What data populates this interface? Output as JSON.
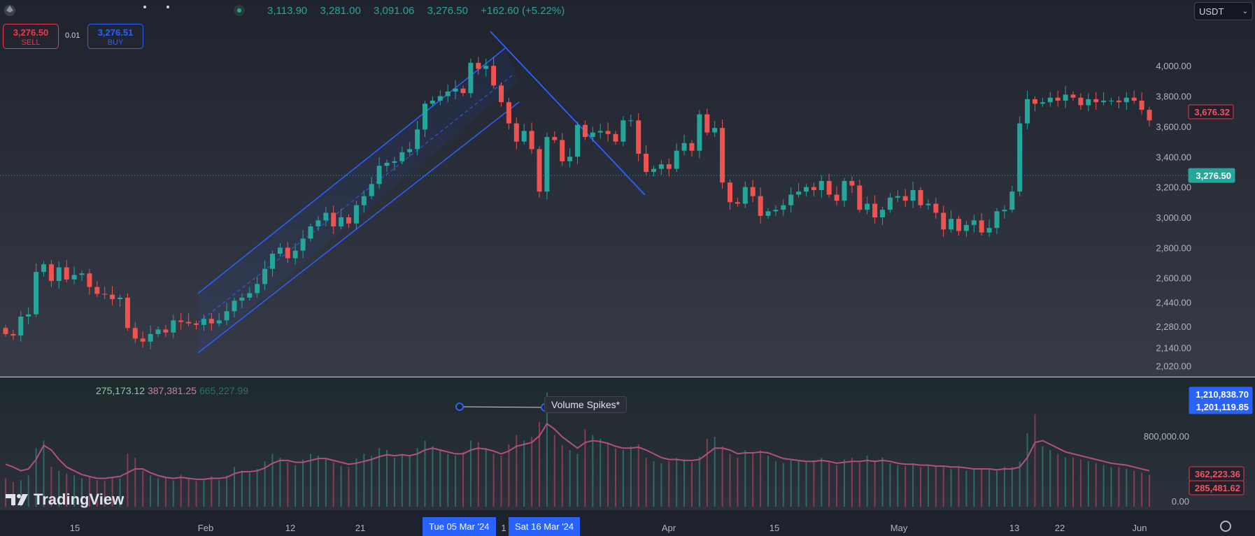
{
  "header": {
    "ohlc": [
      "3,113.90",
      "3,281.00",
      "3,091.06",
      "3,276.50",
      "+162.60 (+5.22%)"
    ],
    "sell_price": "3,276.50",
    "sell_label": "SELL",
    "buy_price": "3,276.51",
    "buy_label": "BUY",
    "spread": "0.01",
    "currency": "USDT",
    "chevron": "⌄"
  },
  "volume_pane": {
    "values": [
      "275,173.12",
      "387,381.25",
      "665,227.99"
    ],
    "annotation": "Volume Spikes*",
    "axis_ticks": [
      "800,000.00",
      "0.00"
    ],
    "labels": [
      "1,210,838.70",
      "1,201,119.85",
      "362,223.36",
      "285,481.62"
    ]
  },
  "price_labels": {
    "last": "3,676.32",
    "current": "3,276.50"
  },
  "time_axis": {
    "ticks": [
      "15",
      "Feb",
      "12",
      "21",
      "Apr",
      "15",
      "May",
      "13",
      "22",
      "Jun"
    ],
    "cursor_dates": [
      "Tue 05 Mar '24",
      "Sat 16 Mar '24"
    ],
    "partial": "1"
  },
  "watermark": "TradingView",
  "colors": {
    "up": "#26a69a",
    "down": "#ef5350",
    "accent": "#2962ff",
    "ma": "#b24f7f",
    "background": "#1e222d"
  },
  "chart_data": {
    "type": "candlestick",
    "y_ticks": [
      2020,
      2140,
      2280,
      2440,
      2600,
      2800,
      3000,
      3200,
      3400,
      3600,
      3800,
      4000
    ],
    "ylim": [
      1990,
      4250
    ],
    "opens": [
      2270,
      2230,
      2220,
      2345,
      2360,
      2640,
      2690,
      2580,
      2670,
      2590,
      2620,
      2630,
      2540,
      2495,
      2490,
      2460,
      2470,
      2270,
      2200,
      2180,
      2230,
      2260,
      2240,
      2320,
      2310,
      2300,
      2290,
      2330,
      2300,
      2320,
      2380,
      2450,
      2470,
      2500,
      2560,
      2660,
      2760,
      2800,
      2730,
      2780,
      2860,
      2940,
      2980,
      3030,
      2940,
      3000,
      2960,
      3080,
      3140,
      3220,
      3340,
      3360,
      3370,
      3430,
      3450,
      3580,
      3750,
      3770,
      3800,
      3830,
      3850,
      3820,
      4020,
      3980,
      4000,
      3870,
      3760,
      3620,
      3500,
      3570,
      3450,
      3170,
      3530,
      3510,
      3370,
      3400,
      3610,
      3530,
      3560,
      3570,
      3550,
      3500,
      3640,
      3640,
      3420,
      3300,
      3320,
      3350,
      3320,
      3440,
      3490,
      3440,
      3680,
      3560,
      3590,
      3230,
      3100,
      3090,
      3200,
      3140,
      3010,
      3040,
      3050,
      3080,
      3150,
      3170,
      3200,
      3180,
      3240,
      3150,
      3110,
      3240,
      3210,
      3050,
      3090,
      3000,
      3050,
      3130,
      3140,
      3110,
      3180,
      3080,
      3090,
      3030,
      2920,
      2990,
      2910,
      2950,
      2980,
      2900,
      2930,
      3040,
      3050,
      3170,
      3620,
      3780,
      3750,
      3760,
      3790,
      3770,
      3810,
      3790,
      3740,
      3780,
      3760,
      3770,
      3770,
      3760,
      3790,
      3770,
      3710
    ],
    "closes": [
      2230,
      2220,
      2345,
      2360,
      2640,
      2690,
      2580,
      2670,
      2590,
      2620,
      2630,
      2540,
      2495,
      2490,
      2460,
      2470,
      2270,
      2200,
      2180,
      2230,
      2260,
      2240,
      2320,
      2310,
      2300,
      2290,
      2330,
      2300,
      2320,
      2380,
      2450,
      2470,
      2500,
      2560,
      2660,
      2760,
      2800,
      2730,
      2780,
      2860,
      2940,
      2980,
      3030,
      2940,
      3000,
      2960,
      3080,
      3140,
      3220,
      3340,
      3360,
      3370,
      3430,
      3450,
      3580,
      3750,
      3770,
      3800,
      3830,
      3850,
      3820,
      4020,
      3980,
      4000,
      3870,
      3760,
      3620,
      3500,
      3570,
      3450,
      3170,
      3530,
      3510,
      3370,
      3400,
      3610,
      3530,
      3560,
      3570,
      3550,
      3500,
      3640,
      3640,
      3420,
      3300,
      3320,
      3350,
      3320,
      3440,
      3490,
      3440,
      3680,
      3560,
      3590,
      3230,
      3100,
      3090,
      3200,
      3140,
      3010,
      3040,
      3050,
      3080,
      3150,
      3170,
      3200,
      3180,
      3240,
      3150,
      3110,
      3240,
      3210,
      3050,
      3090,
      3000,
      3050,
      3130,
      3140,
      3110,
      3180,
      3080,
      3090,
      3030,
      2920,
      2990,
      2910,
      2950,
      2980,
      2900,
      2930,
      3040,
      3050,
      3170,
      3620,
      3780,
      3750,
      3760,
      3790,
      3770,
      3810,
      3790,
      3740,
      3780,
      3760,
      3770,
      3770,
      3760,
      3790,
      3770,
      3710,
      3640
    ],
    "volumes": [
      300,
      260,
      280,
      330,
      620,
      700,
      420,
      380,
      350,
      330,
      300,
      320,
      280,
      270,
      310,
      300,
      560,
      520,
      380,
      330,
      300,
      310,
      280,
      340,
      300,
      270,
      290,
      320,
      280,
      330,
      420,
      380,
      360,
      400,
      480,
      560,
      520,
      470,
      440,
      500,
      560,
      540,
      500,
      470,
      430,
      420,
      510,
      560,
      540,
      620,
      600,
      520,
      560,
      540,
      620,
      700,
      640,
      600,
      560,
      540,
      580,
      700,
      680,
      620,
      560,
      540,
      660,
      760,
      700,
      740,
      900,
      1210,
      760,
      650,
      600,
      560,
      820,
      760,
      720,
      680,
      620,
      600,
      640,
      660,
      520,
      480,
      460,
      480,
      520,
      500,
      470,
      530,
      720,
      740,
      640,
      560,
      520,
      600,
      570,
      600,
      540,
      480,
      460,
      500,
      480,
      470,
      490,
      520,
      470,
      440,
      500,
      520,
      470,
      540,
      480,
      520,
      460,
      440,
      430,
      460,
      420,
      440,
      430,
      420,
      400,
      420,
      380,
      400,
      410,
      390,
      380,
      420,
      420,
      480,
      780,
      980,
      640,
      600,
      560,
      520,
      520,
      500,
      480,
      460,
      440,
      420,
      420,
      400,
      380,
      360,
      340
    ],
    "ma_volume": [
      450,
      420,
      380,
      400,
      500,
      650,
      600,
      500,
      420,
      380,
      340,
      320,
      300,
      300,
      310,
      320,
      360,
      400,
      400,
      360,
      330,
      310,
      300,
      310,
      300,
      290,
      290,
      300,
      300,
      310,
      350,
      370,
      370,
      380,
      410,
      460,
      490,
      490,
      470,
      470,
      490,
      510,
      510,
      490,
      470,
      450,
      460,
      480,
      500,
      530,
      550,
      540,
      550,
      540,
      560,
      600,
      620,
      600,
      580,
      560,
      560,
      600,
      620,
      610,
      590,
      560,
      590,
      640,
      660,
      680,
      750,
      880,
      820,
      740,
      680,
      620,
      680,
      700,
      690,
      670,
      640,
      620,
      620,
      630,
      600,
      560,
      520,
      500,
      500,
      490,
      490,
      500,
      560,
      620,
      620,
      600,
      560,
      570,
      570,
      580,
      570,
      540,
      510,
      500,
      490,
      480,
      480,
      490,
      480,
      460,
      470,
      480,
      480,
      490,
      480,
      490,
      480,
      460,
      450,
      450,
      440,
      440,
      430,
      430,
      420,
      420,
      410,
      400,
      400,
      400,
      390,
      400,
      400,
      420,
      520,
      680,
      700,
      660,
      620,
      580,
      560,
      540,
      520,
      500,
      480,
      460,
      450,
      440,
      420,
      400,
      380
    ]
  }
}
